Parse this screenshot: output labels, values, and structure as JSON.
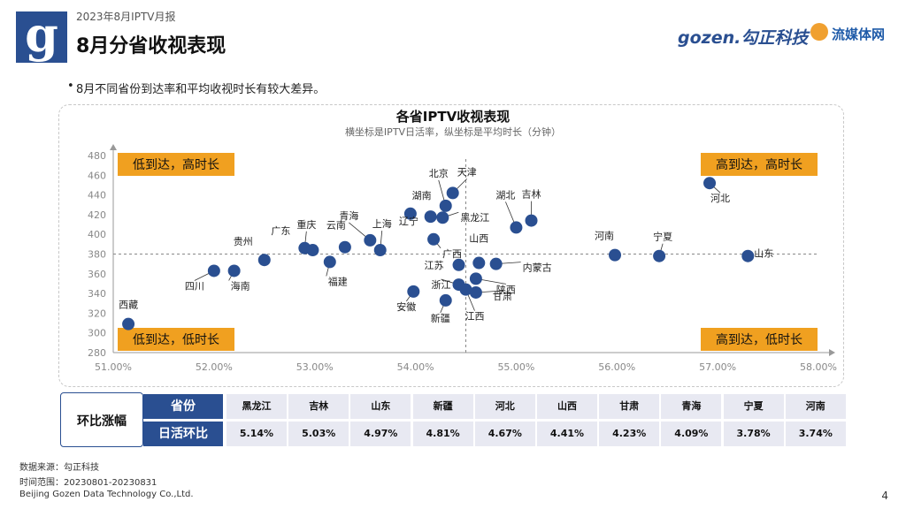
{
  "header": {
    "report_tag": "2023年8月IPTV月报",
    "title": "8月分省收视表现",
    "logo_letter": "g",
    "brand_gozen": "gozen.勾正科技",
    "brand_lmt": "流媒体网"
  },
  "bullet": "8月不同省份到达率和平均收视时长有较大差异。",
  "chart_data": {
    "type": "scatter",
    "title": "各省IPTV收视表现",
    "subtitle": "横坐标是IPTV日活率，纵坐标是平均时长（分钟）",
    "xlim": [
      51,
      58
    ],
    "ylim": [
      280,
      480
    ],
    "x_ticks": [
      "51.00%",
      "52.00%",
      "53.00%",
      "54.00%",
      "55.00%",
      "56.00%",
      "57.00%",
      "58.00%"
    ],
    "y_ticks": [
      "480",
      "460",
      "440",
      "420",
      "400",
      "380",
      "360",
      "340",
      "320",
      "300",
      "280"
    ],
    "ref_x": 54.5,
    "ref_y": 380,
    "point_color": "#2a4f91",
    "quadrant_color": "#f0a020",
    "quadrants": {
      "top_left": "低到达，高时长",
      "top_right": "高到达，高时长",
      "bottom_left": "低到达，低时长",
      "bottom_right": "高到达，低时长"
    },
    "points": [
      {
        "name": "西藏",
        "x": 51.15,
        "y": 309
      },
      {
        "name": "四川",
        "x": 52.0,
        "y": 363
      },
      {
        "name": "海南",
        "x": 52.2,
        "y": 363
      },
      {
        "name": "贵州",
        "x": 52.5,
        "y": 374
      },
      {
        "name": "重庆",
        "x": 52.9,
        "y": 386
      },
      {
        "name": "广东",
        "x": 52.98,
        "y": 384
      },
      {
        "name": "福建",
        "x": 53.15,
        "y": 372
      },
      {
        "name": "云南",
        "x": 53.3,
        "y": 387
      },
      {
        "name": "青海",
        "x": 53.55,
        "y": 394
      },
      {
        "name": "上海",
        "x": 53.65,
        "y": 384
      },
      {
        "name": "辽宁",
        "x": 53.95,
        "y": 421
      },
      {
        "name": "安徽",
        "x": 53.98,
        "y": 342
      },
      {
        "name": "湖南",
        "x": 54.15,
        "y": 418
      },
      {
        "name": "广西",
        "x": 54.18,
        "y": 395
      },
      {
        "name": "黑龙江",
        "x": 54.27,
        "y": 417
      },
      {
        "name": "北京",
        "x": 54.3,
        "y": 429
      },
      {
        "name": "天津",
        "x": 54.37,
        "y": 442
      },
      {
        "name": "新疆",
        "x": 54.3,
        "y": 333
      },
      {
        "name": "浙江",
        "x": 54.43,
        "y": 349
      },
      {
        "name": "江苏",
        "x": 54.43,
        "y": 369
      },
      {
        "name": "江西",
        "x": 54.5,
        "y": 344
      },
      {
        "name": "甘肃",
        "x": 54.6,
        "y": 341
      },
      {
        "name": "陕西",
        "x": 54.6,
        "y": 355
      },
      {
        "name": "山西",
        "x": 54.63,
        "y": 371
      },
      {
        "name": "内蒙古",
        "x": 54.8,
        "y": 370
      },
      {
        "name": "湖北",
        "x": 55.0,
        "y": 407
      },
      {
        "name": "吉林",
        "x": 55.15,
        "y": 414
      },
      {
        "name": "河南",
        "x": 55.98,
        "y": 379
      },
      {
        "name": "宁夏",
        "x": 56.42,
        "y": 378
      },
      {
        "name": "河北",
        "x": 56.92,
        "y": 452
      },
      {
        "name": "山东",
        "x": 57.3,
        "y": 378
      }
    ]
  },
  "table": {
    "label": "环比涨幅",
    "row1_header": "省份",
    "row2_header": "日活环比",
    "provinces": [
      "黑龙江",
      "吉林",
      "山东",
      "新疆",
      "河北",
      "山西",
      "甘肃",
      "青海",
      "宁夏",
      "河南"
    ],
    "values": [
      "5.14%",
      "5.03%",
      "4.97%",
      "4.81%",
      "4.67%",
      "4.41%",
      "4.23%",
      "4.09%",
      "3.78%",
      "3.74%"
    ]
  },
  "footer": {
    "source": "数据来源：勾正科技",
    "range": "时间范围：20230801-20230831",
    "company": "Beijing Gozen Data Technology Co.,Ltd.",
    "page": "4"
  }
}
